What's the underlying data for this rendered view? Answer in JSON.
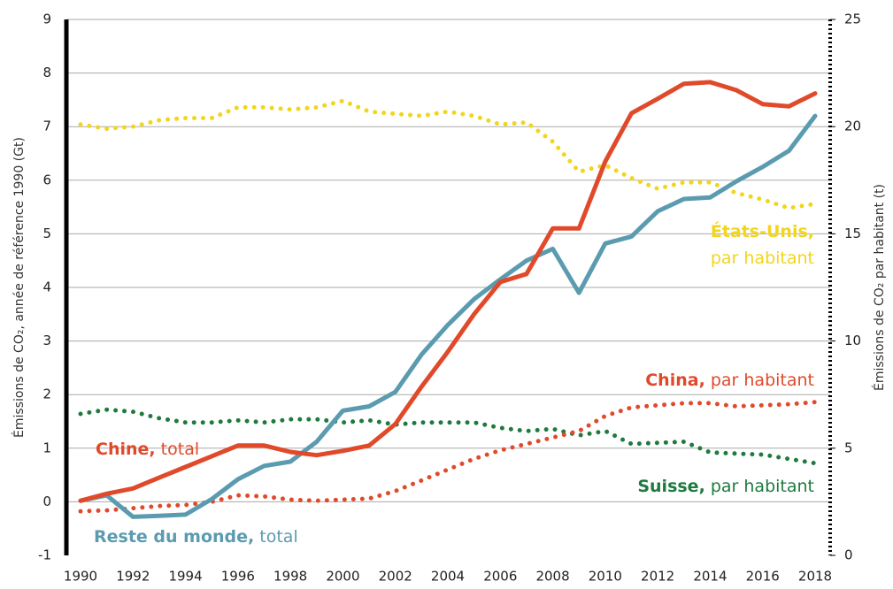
{
  "chart_data": {
    "type": "line",
    "y_label": "Émissions de CO₂, année de référence 1990 (Gt)",
    "y2_label": "Émissions de CO₂ par habitant (t)",
    "x": [
      1990,
      1991,
      1992,
      1993,
      1994,
      1995,
      1996,
      1997,
      1998,
      1999,
      2000,
      2001,
      2002,
      2003,
      2004,
      2005,
      2006,
      2007,
      2008,
      2009,
      2010,
      2011,
      2012,
      2013,
      2014,
      2015,
      2016,
      2017,
      2018
    ],
    "xlim": [
      1990,
      2018
    ],
    "xticks": [
      1990,
      1992,
      1994,
      1996,
      1998,
      2000,
      2002,
      2004,
      2006,
      2008,
      2010,
      2012,
      2014,
      2016,
      2018
    ],
    "ylim": [
      -1,
      9
    ],
    "yticks": [
      -1,
      0,
      1,
      2,
      3,
      4,
      5,
      6,
      7,
      8,
      9
    ],
    "y2lim": [
      0,
      25
    ],
    "y2ticks": [
      0,
      5,
      10,
      15,
      20,
      25
    ],
    "grid": true,
    "series": [
      {
        "name": "États-Unis, par habitant",
        "color": "#f2d51c",
        "style": "dotted",
        "axis": "y2",
        "values": [
          20.1,
          19.9,
          20.0,
          20.3,
          20.4,
          20.4,
          20.9,
          20.9,
          20.8,
          20.9,
          21.2,
          20.7,
          20.6,
          20.5,
          20.7,
          20.5,
          20.1,
          20.2,
          19.3,
          17.9,
          18.2,
          17.6,
          17.1,
          17.4,
          17.4,
          16.9,
          16.6,
          16.2,
          16.4
        ]
      },
      {
        "name": "Suisse, par habitant",
        "color": "#1e7a3e",
        "style": "dotted",
        "axis": "y2",
        "values": [
          6.6,
          6.8,
          6.7,
          6.4,
          6.2,
          6.2,
          6.3,
          6.2,
          6.35,
          6.35,
          6.2,
          6.3,
          6.1,
          6.2,
          6.2,
          6.2,
          5.95,
          5.8,
          5.9,
          5.6,
          5.8,
          5.2,
          5.25,
          5.3,
          4.8,
          4.75,
          4.7,
          4.5,
          4.3
        ]
      },
      {
        "name": "China, par habitant",
        "color": "#e04a2a",
        "style": "dotted",
        "axis": "y2",
        "values": [
          2.06,
          2.1,
          2.2,
          2.3,
          2.35,
          2.5,
          2.8,
          2.75,
          2.6,
          2.55,
          2.6,
          2.65,
          3.0,
          3.5,
          4.0,
          4.5,
          4.9,
          5.2,
          5.5,
          5.8,
          6.5,
          6.9,
          7.0,
          7.1,
          7.1,
          6.95,
          7.0,
          7.05,
          7.15
        ]
      },
      {
        "name": "Reste du monde, total",
        "color": "#5b9bb0",
        "style": "solid",
        "values": [
          0.02,
          0.12,
          -0.28,
          -0.26,
          -0.24,
          0.05,
          0.42,
          0.67,
          0.75,
          1.12,
          1.7,
          1.78,
          2.05,
          2.75,
          3.3,
          3.78,
          4.15,
          4.5,
          4.72,
          3.9,
          4.82,
          4.95,
          5.42,
          5.65,
          5.68,
          5.98,
          6.25,
          6.55,
          7.2
        ]
      },
      {
        "name": "Chine, total",
        "color": "#e04a2a",
        "style": "solid",
        "values": [
          0.02,
          0.15,
          0.25,
          0.45,
          0.65,
          0.85,
          1.05,
          1.05,
          0.93,
          0.87,
          0.95,
          1.05,
          1.45,
          2.15,
          2.8,
          3.5,
          4.1,
          4.25,
          5.1,
          5.1,
          6.35,
          7.25,
          7.52,
          7.8,
          7.83,
          7.68,
          7.42,
          7.38,
          7.62
        ]
      }
    ]
  }
}
